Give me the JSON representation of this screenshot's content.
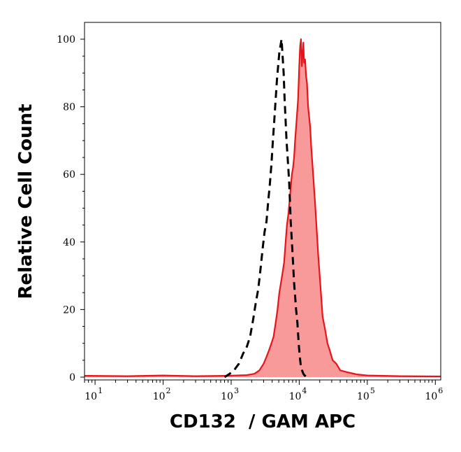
{
  "chart_data": {
    "type": "area",
    "title": "",
    "xlabel": "CD132  / GAM APC",
    "ylabel": "Relative Cell Count",
    "x_scale": "log",
    "xlim": [
      7,
      1200000
    ],
    "ylim": [
      0,
      100
    ],
    "x_ticks": [
      {
        "base": "10",
        "exp": "1",
        "value": 10
      },
      {
        "base": "10",
        "exp": "2",
        "value": 100
      },
      {
        "base": "10",
        "exp": "3",
        "value": 1000
      },
      {
        "base": "10",
        "exp": "4",
        "value": 10000
      },
      {
        "base": "10",
        "exp": "5",
        "value": 100000
      },
      {
        "base": "10",
        "exp": "6",
        "value": 1000000
      }
    ],
    "y_ticks": [
      0,
      20,
      40,
      60,
      80,
      100
    ],
    "grid": false,
    "series": [
      {
        "style": "filled",
        "color": "#e8141a",
        "fill": "#f99a9a",
        "x": [
          7,
          30,
          100,
          300,
          800,
          1200,
          1700,
          2200,
          2600,
          3000,
          3300,
          3600,
          3900,
          4200,
          4500,
          4800,
          5100,
          5400,
          5700,
          6000,
          6300,
          6600,
          6900,
          7200,
          7500,
          7800,
          8100,
          8400,
          8700,
          9000,
          9300,
          9600,
          9800,
          10000,
          10300,
          10600,
          10900,
          11200,
          11500,
          11800,
          12200,
          12600,
          13000,
          13500,
          14000,
          14500,
          15000,
          16000,
          17000,
          18000,
          19000,
          20000,
          21000,
          22000,
          24000,
          26000,
          28000,
          31000,
          35000,
          40000,
          50000,
          70000,
          100000,
          300000,
          1200000
        ],
        "values": [
          0.4,
          0.3,
          0.5,
          0.3,
          0.4,
          0.5,
          0.6,
          1,
          2,
          4,
          6,
          8,
          10,
          12,
          16,
          20,
          25,
          28,
          31,
          34,
          40,
          45,
          48,
          52,
          56,
          60,
          62,
          65,
          70,
          74,
          78,
          82,
          87,
          92,
          98,
          100,
          92,
          95,
          99,
          93,
          94,
          89,
          87,
          80,
          77,
          74,
          68,
          60,
          52,
          44,
          36,
          30,
          24,
          18,
          14,
          10,
          8,
          5,
          4,
          2,
          1.5,
          0.8,
          0.5,
          0.3,
          0.2
        ]
      },
      {
        "style": "dashed",
        "color": "#000000",
        "x": [
          800,
          950,
          1100,
          1300,
          1500,
          1700,
          1900,
          2100,
          2300,
          2500,
          2700,
          2900,
          3100,
          3300,
          3500,
          3700,
          3900,
          4100,
          4300,
          4500,
          4700,
          4900,
          5100,
          5300,
          5500,
          5700,
          5900,
          6100,
          6300,
          6500,
          6700,
          6900,
          7100,
          7300,
          7500,
          7800,
          8100,
          8400,
          8700,
          9000,
          9400,
          9800,
          10200,
          10600,
          11000,
          11500,
          12000,
          13000
        ],
        "values": [
          0,
          1,
          2,
          4,
          7,
          9,
          12,
          17,
          22,
          26,
          32,
          38,
          43,
          46,
          52,
          57,
          63,
          70,
          76,
          82,
          88,
          92,
          96,
          98,
          100,
          95,
          90,
          82,
          76,
          70,
          66,
          62,
          58,
          52,
          46,
          40,
          34,
          28,
          24,
          20,
          16,
          10,
          6,
          3,
          2,
          1,
          0.5,
          0
        ]
      }
    ]
  }
}
